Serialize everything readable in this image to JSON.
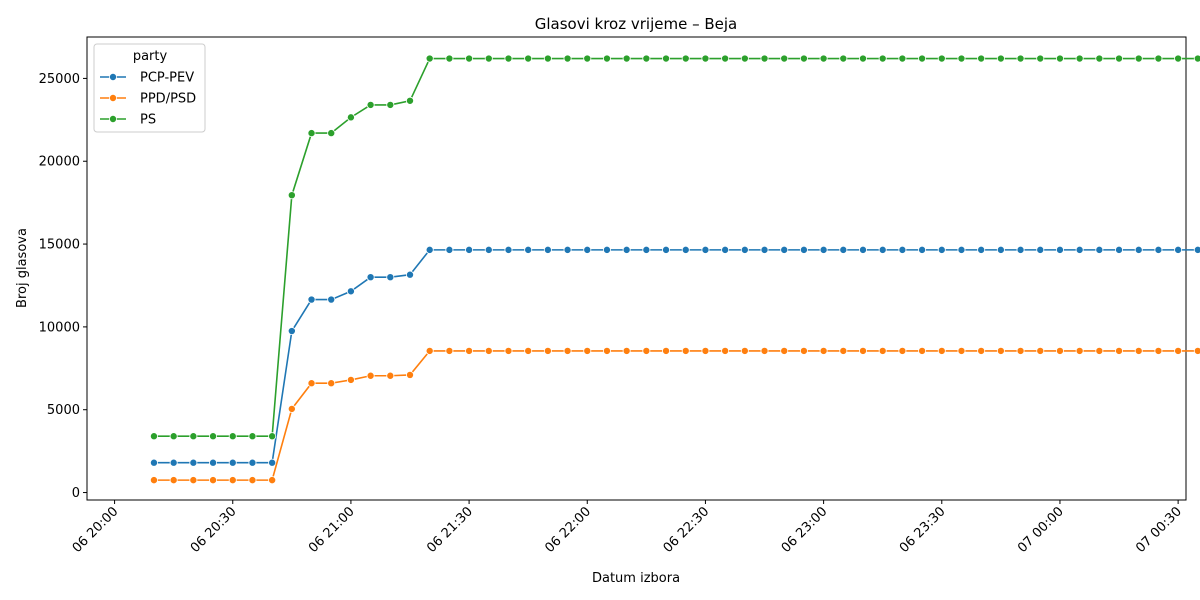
{
  "chart_data": {
    "type": "line",
    "title": "Glasovi kroz vrijeme – Beja",
    "xlabel": "Datum izbora",
    "ylabel": "Broj glasova",
    "x_range_minutes": [
      -7,
      272
    ],
    "ylim": [
      -450,
      27500
    ],
    "xtick_minutes": [
      0,
      30,
      60,
      90,
      120,
      150,
      180,
      210,
      240,
      270
    ],
    "xtick_labels": [
      "06 20:00",
      "06 20:30",
      "06 21:00",
      "06 21:30",
      "06 22:00",
      "06 22:30",
      "06 23:00",
      "06 23:30",
      "07 00:00",
      "07 00:30"
    ],
    "yticks": [
      0,
      5000,
      10000,
      15000,
      20000,
      25000
    ],
    "ytick_labels": [
      "0",
      "5000",
      "10000",
      "15000",
      "20000",
      "25000"
    ],
    "x_minutes": [
      10,
      15,
      20,
      25,
      30,
      35,
      40,
      45,
      50,
      55,
      60,
      65,
      70,
      75,
      80,
      85,
      90,
      95,
      100,
      105,
      110,
      115,
      120,
      125,
      130,
      135,
      140,
      145,
      150,
      155,
      160,
      165,
      170,
      175,
      180,
      185,
      190,
      195,
      200,
      205,
      210,
      215,
      220,
      225,
      230,
      235,
      240,
      245,
      250,
      255,
      260,
      265,
      270,
      275
    ],
    "grid": false,
    "legend_title": "party",
    "legend_position": "upper-left",
    "series": [
      {
        "name": "PCP-PEV",
        "color": "#1f77b4",
        "values": [
          1800,
          1800,
          1800,
          1800,
          1800,
          1800,
          1800,
          9750,
          11650,
          11650,
          12150,
          13000,
          13000,
          13150,
          14650,
          14650,
          14650,
          14650,
          14650,
          14650,
          14650,
          14650,
          14650,
          14650,
          14650,
          14650,
          14650,
          14650,
          14650,
          14650,
          14650,
          14650,
          14650,
          14650,
          14650,
          14650,
          14650,
          14650,
          14650,
          14650,
          14650,
          14650,
          14650,
          14650,
          14650,
          14650,
          14650,
          14650,
          14650,
          14650,
          14650,
          14650,
          14650,
          14650
        ]
      },
      {
        "name": "PPD/PSD",
        "color": "#ff7f0e",
        "values": [
          750,
          750,
          750,
          750,
          750,
          750,
          750,
          5050,
          6600,
          6600,
          6800,
          7050,
          7050,
          7100,
          8550,
          8550,
          8550,
          8550,
          8550,
          8550,
          8550,
          8550,
          8550,
          8550,
          8550,
          8550,
          8550,
          8550,
          8550,
          8550,
          8550,
          8550,
          8550,
          8550,
          8550,
          8550,
          8550,
          8550,
          8550,
          8550,
          8550,
          8550,
          8550,
          8550,
          8550,
          8550,
          8550,
          8550,
          8550,
          8550,
          8550,
          8550,
          8550,
          8550
        ]
      },
      {
        "name": "PS",
        "color": "#2ca02c",
        "values": [
          3400,
          3400,
          3400,
          3400,
          3400,
          3400,
          3400,
          17950,
          21700,
          21700,
          22650,
          23400,
          23400,
          23650,
          26200,
          26200,
          26200,
          26200,
          26200,
          26200,
          26200,
          26200,
          26200,
          26200,
          26200,
          26200,
          26200,
          26200,
          26200,
          26200,
          26200,
          26200,
          26200,
          26200,
          26200,
          26200,
          26200,
          26200,
          26200,
          26200,
          26200,
          26200,
          26200,
          26200,
          26200,
          26200,
          26200,
          26200,
          26200,
          26200,
          26200,
          26200,
          26200,
          26200
        ]
      }
    ]
  }
}
